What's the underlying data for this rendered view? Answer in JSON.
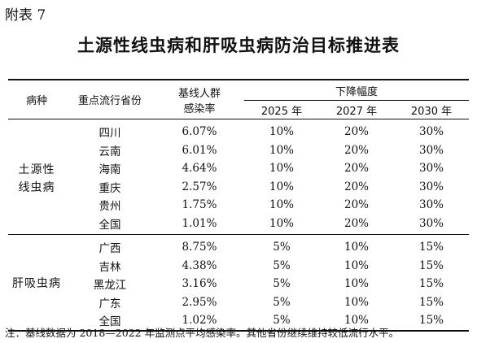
{
  "appendix_label": "附表 7",
  "title": "土源性线虫病和肝吸虫病防治目标推进表",
  "headers": {
    "disease": "病种",
    "region": "重点流行省份",
    "baseline_line1": "基线人群",
    "baseline_line2": "感染率",
    "decrease": "下降幅度",
    "years": [
      "2025 年",
      "2027 年",
      "2030 年"
    ]
  },
  "groups": [
    {
      "disease_line1": "土源性",
      "disease_line2": "线虫病",
      "rows": [
        {
          "region": "四川",
          "baseline": "6.07%",
          "targets": [
            "10%",
            "20%",
            "30%"
          ]
        },
        {
          "region": "云南",
          "baseline": "6.01%",
          "targets": [
            "10%",
            "20%",
            "30%"
          ]
        },
        {
          "region": "海南",
          "baseline": "4.64%",
          "targets": [
            "10%",
            "20%",
            "30%"
          ]
        },
        {
          "region": "重庆",
          "baseline": "2.57%",
          "targets": [
            "10%",
            "20%",
            "30%"
          ]
        },
        {
          "region": "贵州",
          "baseline": "1.75%",
          "targets": [
            "10%",
            "20%",
            "30%"
          ]
        },
        {
          "region": "全国",
          "baseline": "1.01%",
          "targets": [
            "10%",
            "20%",
            "30%"
          ]
        }
      ]
    },
    {
      "disease_line1": "肝吸虫病",
      "disease_line2": "",
      "rows": [
        {
          "region": "广西",
          "baseline": "8.75%",
          "targets": [
            "5%",
            "10%",
            "15%"
          ]
        },
        {
          "region": "吉林",
          "baseline": "4.38%",
          "targets": [
            "5%",
            "10%",
            "15%"
          ]
        },
        {
          "region": "黑龙江",
          "baseline": "3.16%",
          "targets": [
            "5%",
            "10%",
            "15%"
          ]
        },
        {
          "region": "广东",
          "baseline": "2.95%",
          "targets": [
            "5%",
            "10%",
            "15%"
          ]
        },
        {
          "region": "全国",
          "baseline": "1.02%",
          "targets": [
            "5%",
            "10%",
            "15%"
          ]
        }
      ]
    }
  ],
  "footnote": "注：基线数据为 2018—2022 年监测点平均感染率。其他省份继续维持较低流行水平。"
}
